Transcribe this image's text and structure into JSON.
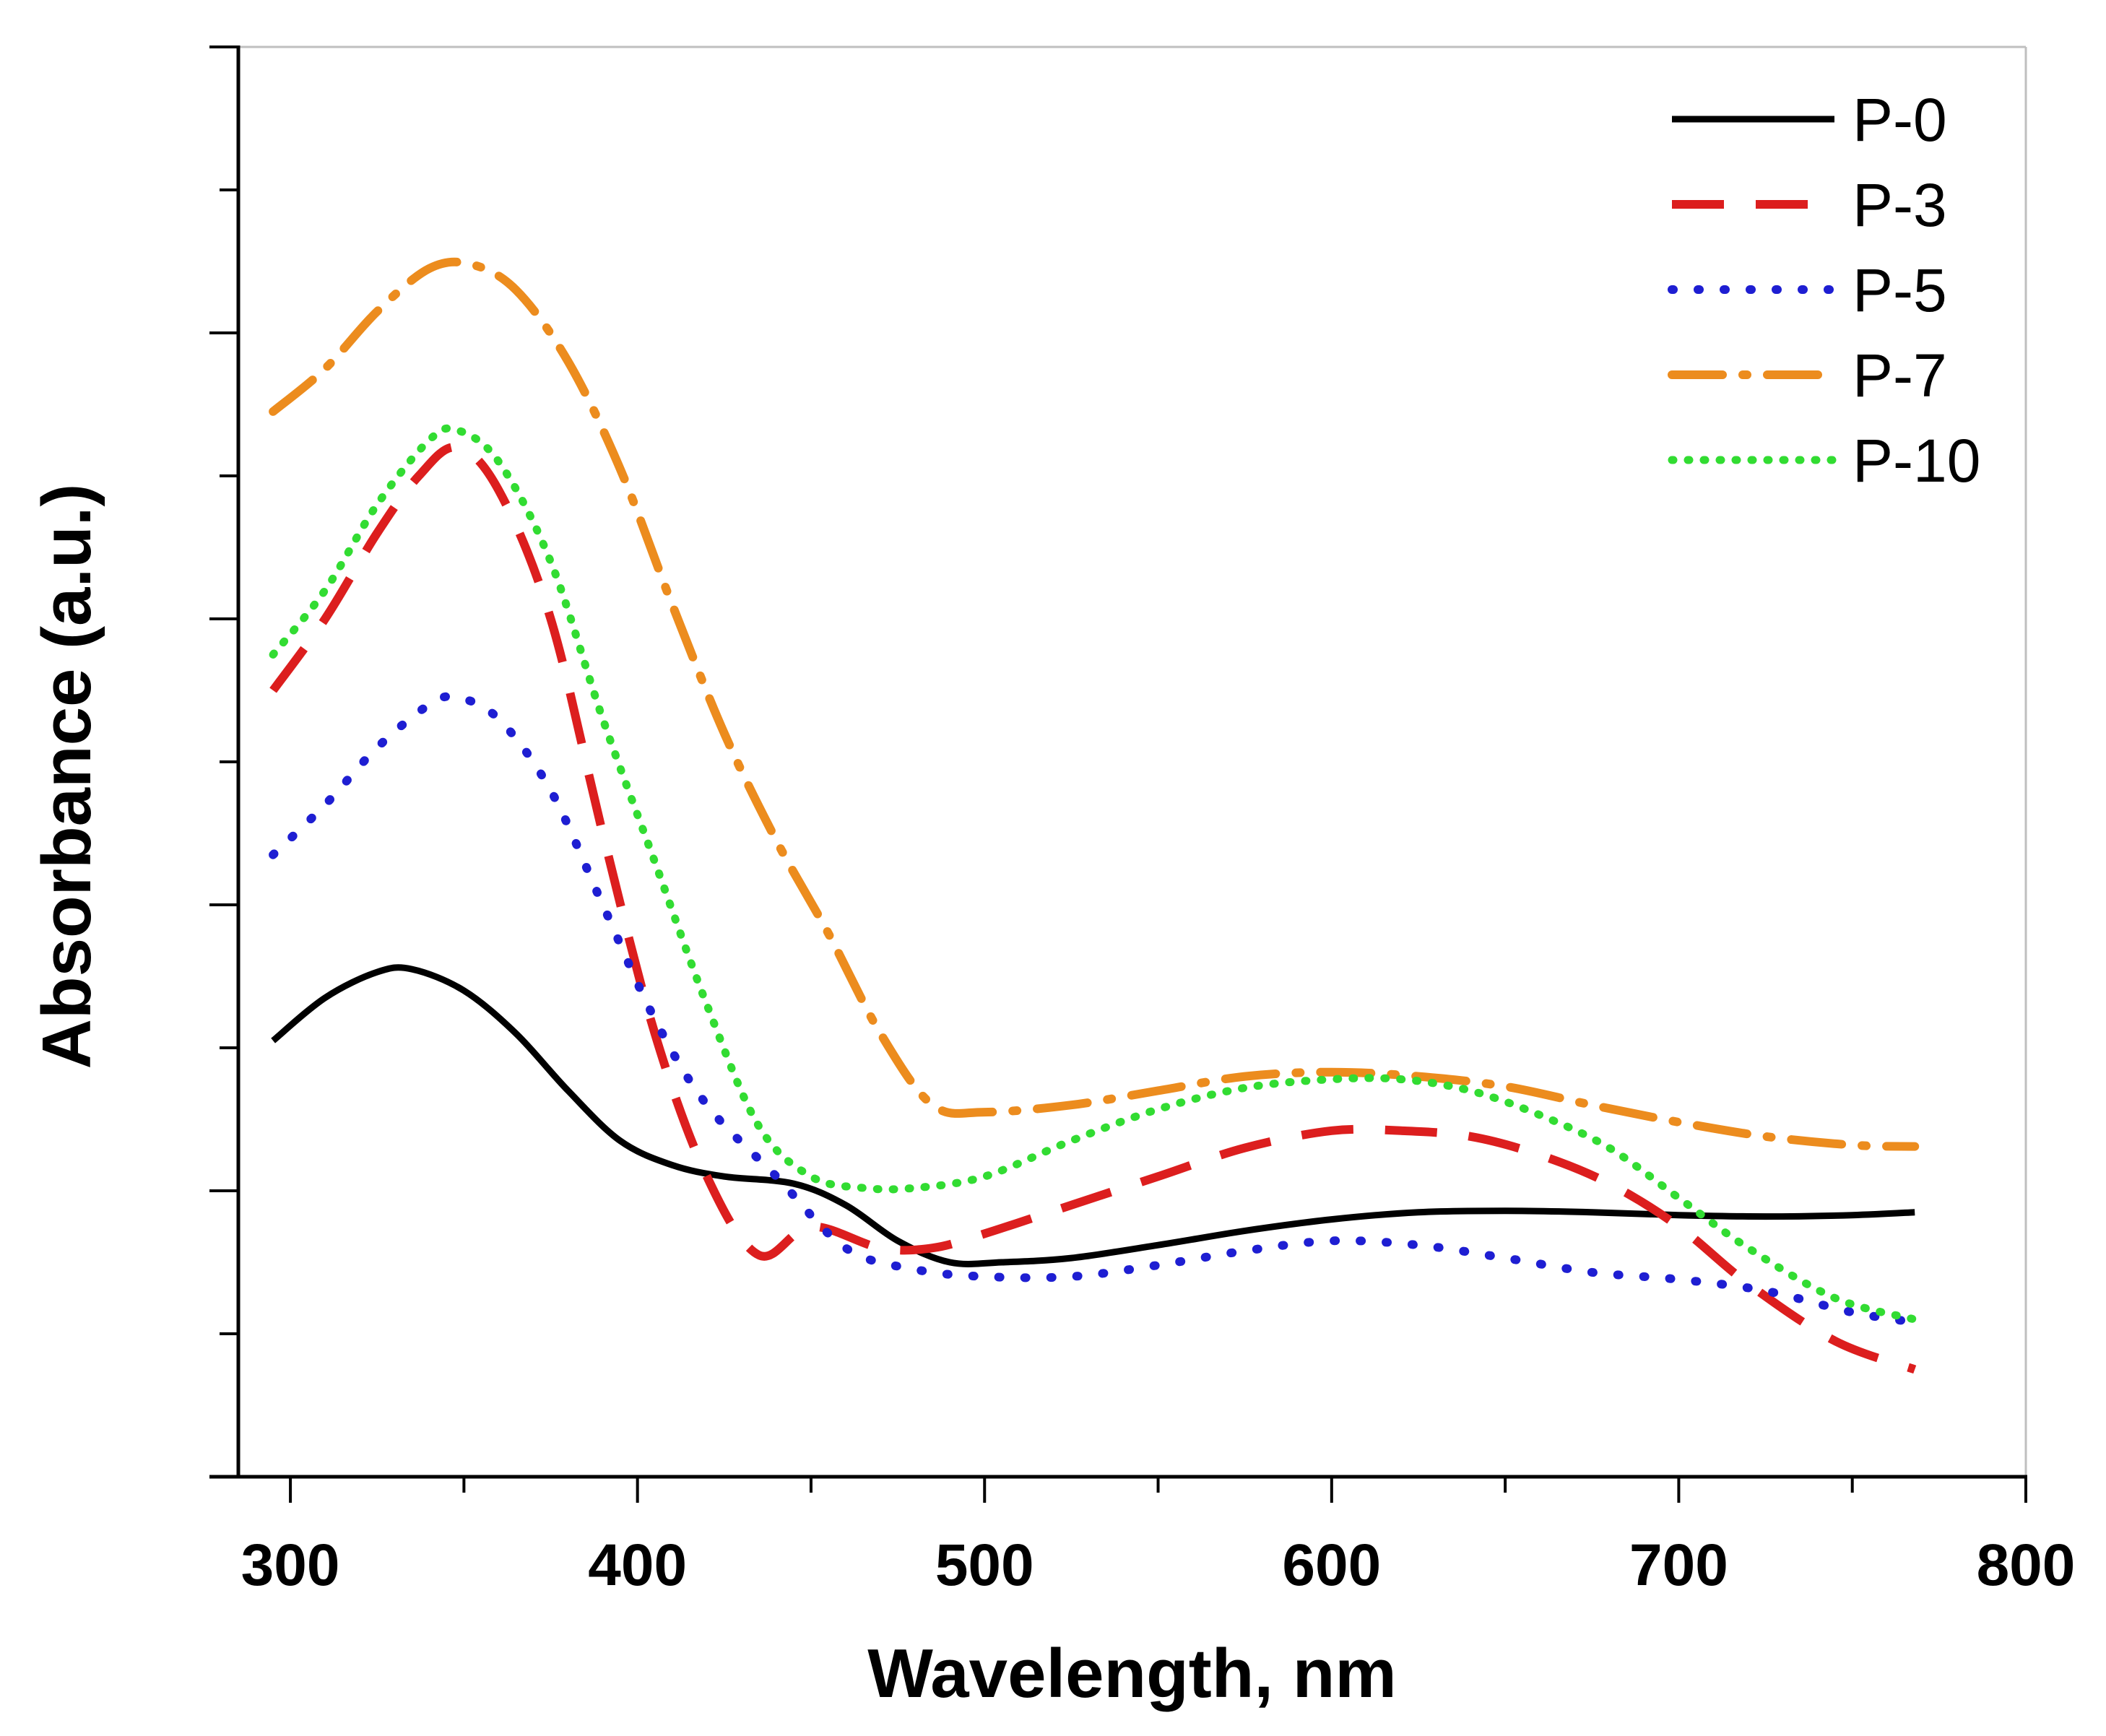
{
  "chart_data": {
    "type": "line",
    "title": "",
    "xlabel": "Wavelength, nm",
    "ylabel": "Absorbance (a.u.)",
    "xlim": [
      285,
      800
    ],
    "ylim": [
      0,
      10
    ],
    "xticks": [
      300,
      400,
      500,
      600,
      700,
      800
    ],
    "xtick_labels": [
      "300",
      "400",
      "500",
      "600",
      "700",
      "800"
    ],
    "yticks": [
      0,
      1,
      2,
      3,
      4,
      5,
      6,
      7,
      8,
      9,
      10
    ],
    "ytick_labels": [],
    "grid": false,
    "legend_position": "top-right",
    "series": [
      {
        "name": "P-0",
        "color": "#000000",
        "style": "solid",
        "x": [
          295,
          310,
          325,
          335,
          350,
          365,
          380,
          395,
          410,
          425,
          445,
          460,
          475,
          490,
          505,
          525,
          550,
          575,
          600,
          625,
          650,
          675,
          700,
          725,
          750,
          768
        ],
        "y": [
          3.05,
          3.35,
          3.53,
          3.55,
          3.4,
          3.1,
          2.7,
          2.35,
          2.18,
          2.1,
          2.05,
          1.9,
          1.65,
          1.5,
          1.5,
          1.53,
          1.62,
          1.72,
          1.8,
          1.85,
          1.86,
          1.85,
          1.83,
          1.82,
          1.83,
          1.85
        ]
      },
      {
        "name": "P-3",
        "color": "#dc1e1e",
        "style": "dashed",
        "x": [
          295,
          310,
          325,
          337,
          348,
          360,
          375,
          390,
          405,
          420,
          435,
          450,
          470,
          485,
          500,
          525,
          550,
          575,
          600,
          620,
          640,
          660,
          680,
          700,
          720,
          745,
          768
        ],
        "y": [
          5.5,
          6.0,
          6.6,
          7.0,
          7.2,
          6.9,
          6.0,
          4.5,
          3.1,
          2.1,
          1.55,
          1.75,
          1.6,
          1.6,
          1.7,
          1.9,
          2.1,
          2.3,
          2.42,
          2.42,
          2.38,
          2.25,
          2.05,
          1.75,
          1.35,
          0.95,
          0.75
        ]
      },
      {
        "name": "P-5",
        "color": "#1e1ed2",
        "style": "dotted",
        "x": [
          295,
          310,
          325,
          340,
          348,
          360,
          375,
          390,
          405,
          420,
          440,
          460,
          480,
          500,
          525,
          550,
          575,
          600,
          625,
          650,
          675,
          700,
          725,
          750,
          768
        ],
        "y": [
          4.35,
          4.7,
          5.1,
          5.4,
          5.45,
          5.3,
          4.8,
          4.0,
          3.2,
          2.6,
          2.1,
          1.6,
          1.45,
          1.4,
          1.4,
          1.48,
          1.58,
          1.65,
          1.62,
          1.53,
          1.43,
          1.38,
          1.3,
          1.15,
          1.08
        ]
      },
      {
        "name": "P-7",
        "color": "#ec8c1e",
        "style": "dashdot",
        "x": [
          295,
          310,
          325,
          340,
          352,
          365,
          380,
          395,
          410,
          425,
          440,
          455,
          470,
          485,
          500,
          525,
          550,
          575,
          600,
          625,
          650,
          675,
          700,
          725,
          750,
          768
        ],
        "y": [
          7.45,
          7.75,
          8.15,
          8.45,
          8.48,
          8.3,
          7.8,
          7.05,
          6.1,
          5.2,
          4.45,
          3.8,
          3.1,
          2.6,
          2.55,
          2.6,
          2.7,
          2.8,
          2.83,
          2.8,
          2.73,
          2.6,
          2.48,
          2.38,
          2.32,
          2.31
        ]
      },
      {
        "name": "P-10",
        "color": "#32dc32",
        "style": "densedot",
        "x": [
          295,
          310,
          325,
          340,
          348,
          360,
          375,
          390,
          405,
          420,
          435,
          450,
          465,
          480,
          500,
          525,
          550,
          575,
          600,
          620,
          640,
          660,
          680,
          700,
          720,
          745,
          768
        ],
        "y": [
          5.75,
          6.2,
          6.8,
          7.25,
          7.32,
          7.1,
          6.4,
          5.3,
          4.3,
          3.3,
          2.45,
          2.1,
          2.02,
          2.02,
          2.1,
          2.35,
          2.57,
          2.72,
          2.78,
          2.78,
          2.7,
          2.53,
          2.3,
          1.95,
          1.6,
          1.25,
          1.1
        ]
      }
    ]
  }
}
